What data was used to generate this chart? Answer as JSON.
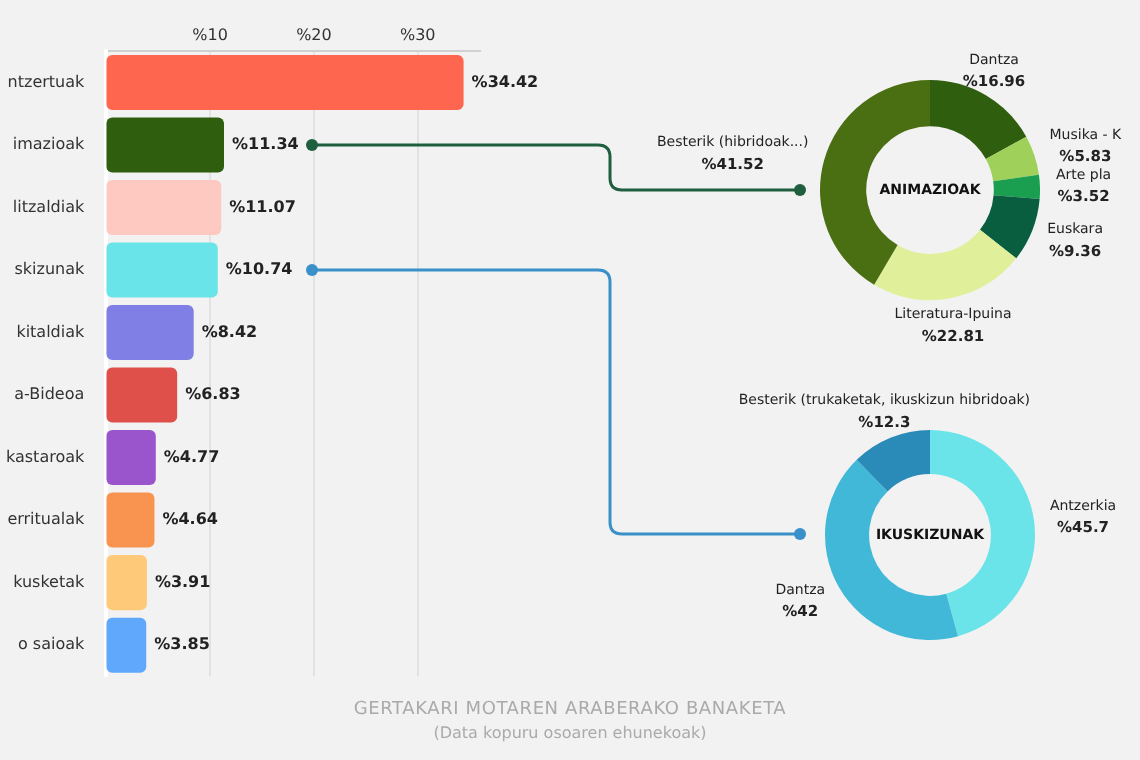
{
  "chart_data": [
    {
      "type": "bar",
      "orientation": "horizontal",
      "title": "GERTAKARI MOTAREN ARABERAKO BANAKETA",
      "subtitle": "(Data kopuru osoaren ehunekoak)",
      "categories": [
        "ntzertuak",
        "imazioak",
        "litzaldiak",
        "skizunak",
        "kitaldiak",
        "a-Bideoa",
        "kastaroak",
        "erritualak",
        "kusketak",
        "o saioak"
      ],
      "values": [
        34.42,
        11.34,
        11.07,
        10.74,
        8.42,
        6.83,
        4.77,
        4.64,
        3.91,
        3.85
      ],
      "colors": [
        "#ff6650",
        "#2f5e0e",
        "#fdc9c0",
        "#69e4e8",
        "#7f7fe6",
        "#e0504a",
        "#9b55cc",
        "#f89350",
        "#ffc97a",
        "#60a8fc"
      ],
      "value_labels": [
        "%34.42",
        "%11.34",
        "%11.07",
        "%10.74",
        "%8.42",
        "%6.83",
        "%4.77",
        "%4.64",
        "%3.91",
        "%3.85"
      ],
      "xlim": [
        0,
        36
      ],
      "xticks": [
        {
          "value": 10,
          "label": "%10"
        },
        {
          "value": 20,
          "label": "%20"
        },
        {
          "value": 30,
          "label": "%30"
        }
      ],
      "grid": "x",
      "legend": false
    },
    {
      "type": "donut",
      "title": "ANIMAZIOAK",
      "categories": [
        "Dantza",
        "Musika - K",
        "Arte pla",
        "Euskara",
        "Literatura-Ipuina",
        "Besterik (hibridoak...)"
      ],
      "values": [
        16.96,
        5.83,
        3.52,
        9.36,
        22.81,
        41.52
      ],
      "colors": [
        "#2f5e0e",
        "#9fd05a",
        "#1a9e50",
        "#0a5e40",
        "#e0f09a",
        "#4a6e12"
      ],
      "value_labels": [
        "%16.96",
        "%5.83",
        "%3.52",
        "%9.36",
        "%22.81",
        "%41.52"
      ],
      "legend": false
    },
    {
      "type": "donut",
      "title": "IKUSKIZUNAK",
      "categories": [
        "Antzerkia",
        "Dantza",
        "Besterik (trukaketak, ikuskizun hibridoak)"
      ],
      "values": [
        45.7,
        42,
        12.3
      ],
      "colors": [
        "#6ae4e8",
        "#42b8d8",
        "#2a8ab8"
      ],
      "value_labels": [
        "%45.7",
        "%42",
        "%12.3"
      ],
      "legend": false
    }
  ]
}
